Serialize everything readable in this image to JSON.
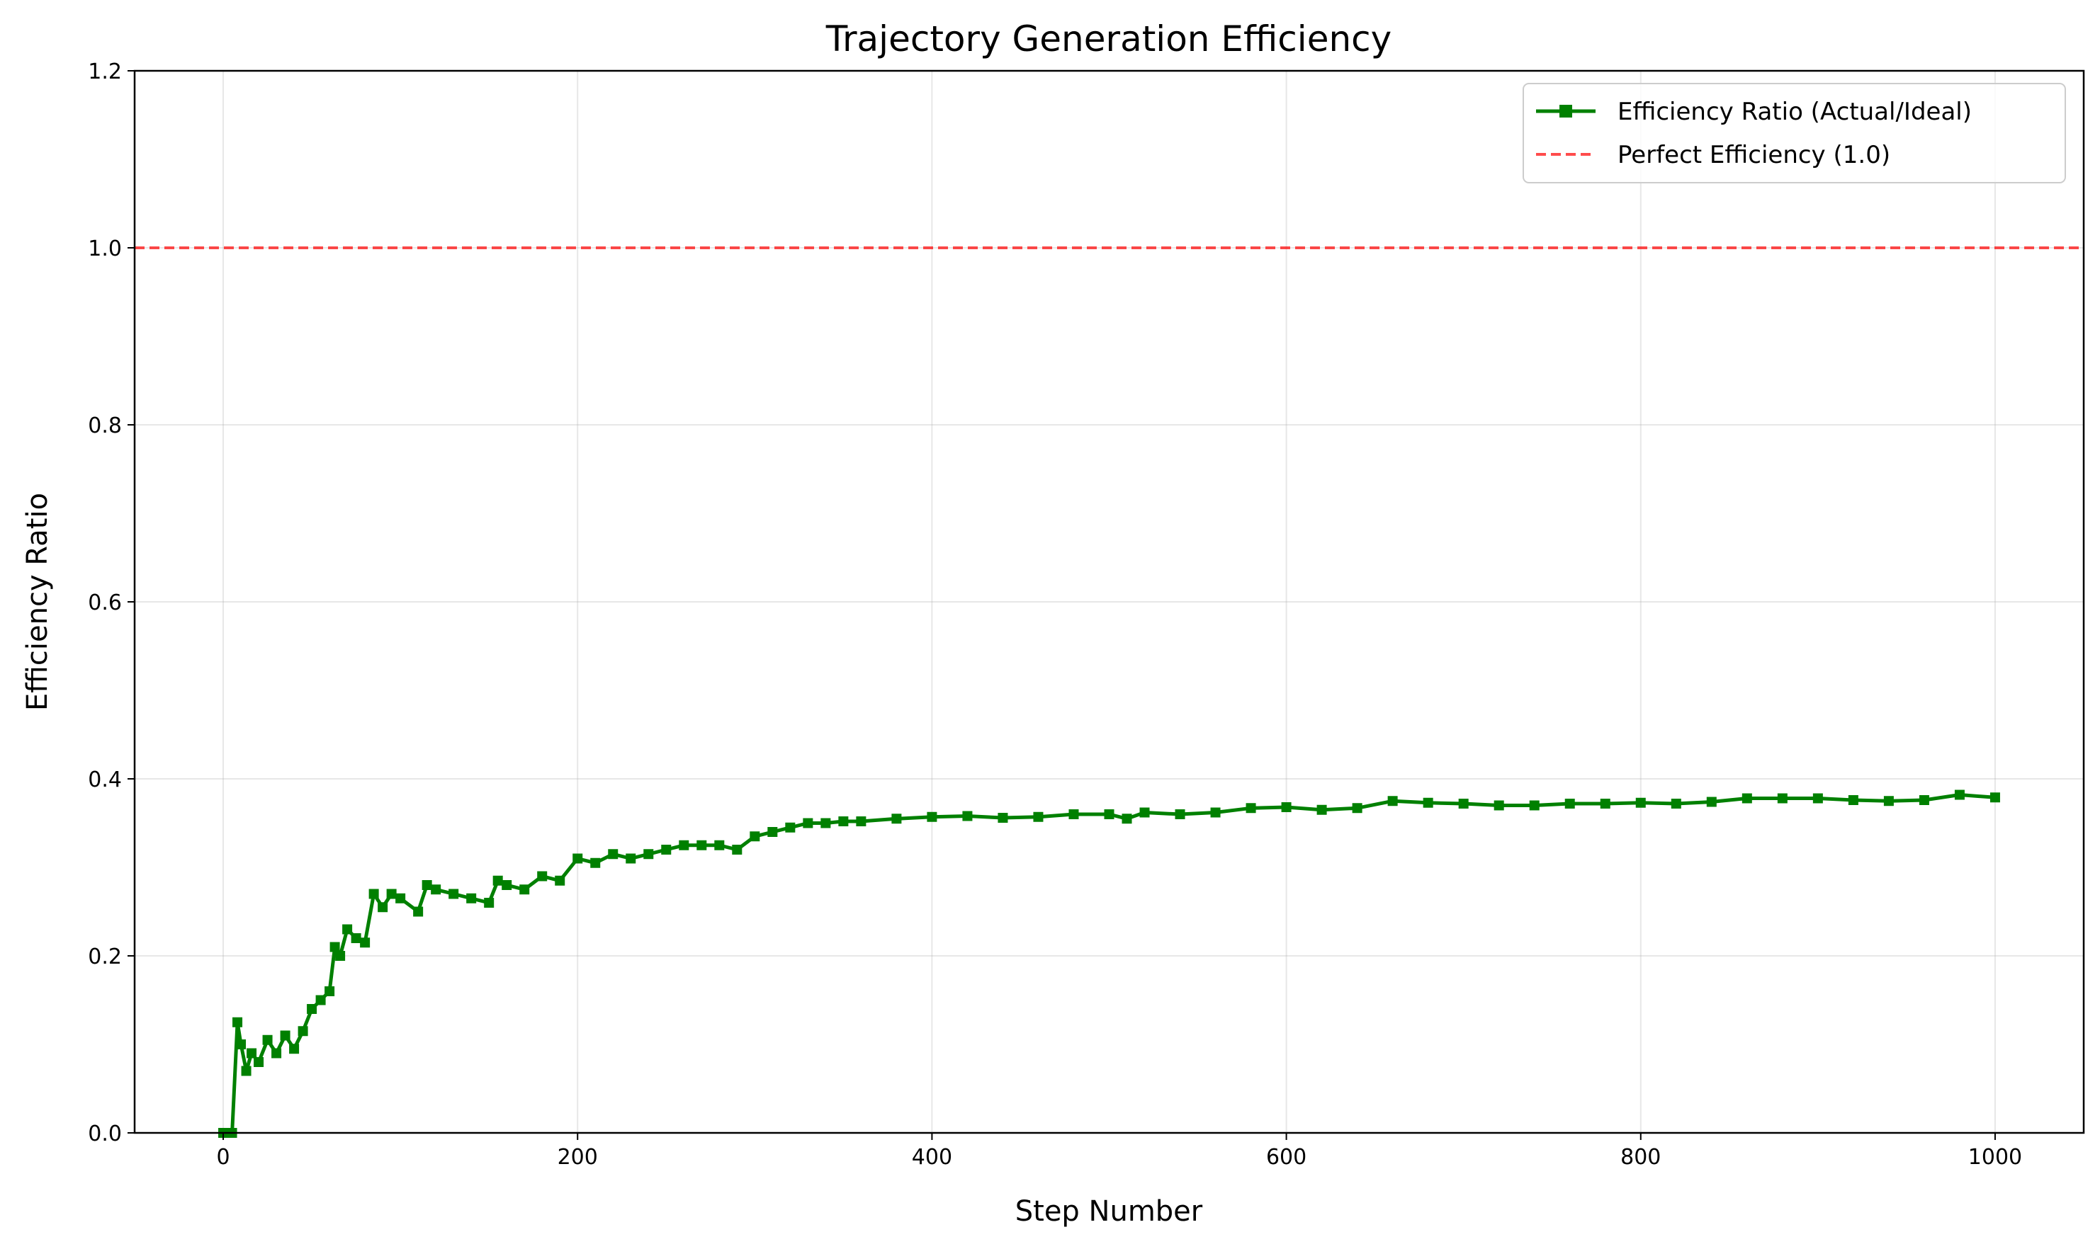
{
  "chart_data": {
    "type": "line",
    "title": "Trajectory Generation Efficiency",
    "xlabel": "Step Number",
    "ylabel": "Efficiency Ratio",
    "xlim": [
      -50,
      1050
    ],
    "ylim": [
      0,
      1.2
    ],
    "xticks": [
      "0",
      "200",
      "400",
      "600",
      "800",
      "1000"
    ],
    "yticks": [
      "0.0",
      "0.2",
      "0.4",
      "0.6",
      "0.8",
      "1.0",
      "1.2"
    ],
    "grid": true,
    "legend_position": "top-right",
    "series": [
      {
        "name": "Efficiency Ratio (Actual/Ideal)",
        "color": "#008000",
        "style": "solid",
        "marker": "square",
        "x": [
          0,
          5,
          8,
          10,
          13,
          16,
          20,
          25,
          30,
          35,
          40,
          45,
          50,
          55,
          60,
          63,
          66,
          70,
          75,
          80,
          85,
          90,
          95,
          100,
          110,
          115,
          120,
          130,
          140,
          150,
          155,
          160,
          170,
          180,
          190,
          200,
          210,
          220,
          230,
          240,
          250,
          260,
          270,
          280,
          290,
          300,
          310,
          320,
          330,
          340,
          350,
          360,
          380,
          400,
          420,
          440,
          460,
          480,
          500,
          510,
          520,
          540,
          560,
          580,
          600,
          620,
          640,
          660,
          680,
          700,
          720,
          740,
          760,
          780,
          800,
          820,
          840,
          860,
          880,
          900,
          920,
          940,
          960,
          980,
          1000
        ],
        "y": [
          0.0,
          0.0,
          0.125,
          0.1,
          0.07,
          0.09,
          0.08,
          0.105,
          0.09,
          0.11,
          0.095,
          0.115,
          0.14,
          0.15,
          0.16,
          0.21,
          0.2,
          0.23,
          0.22,
          0.215,
          0.27,
          0.255,
          0.27,
          0.265,
          0.25,
          0.28,
          0.275,
          0.27,
          0.265,
          0.26,
          0.285,
          0.28,
          0.275,
          0.29,
          0.285,
          0.31,
          0.305,
          0.315,
          0.31,
          0.315,
          0.32,
          0.325,
          0.325,
          0.325,
          0.32,
          0.335,
          0.34,
          0.345,
          0.35,
          0.35,
          0.352,
          0.352,
          0.355,
          0.357,
          0.358,
          0.356,
          0.357,
          0.36,
          0.36,
          0.355,
          0.362,
          0.36,
          0.362,
          0.367,
          0.368,
          0.365,
          0.367,
          0.375,
          0.373,
          0.372,
          0.37,
          0.37,
          0.372,
          0.372,
          0.373,
          0.372,
          0.374,
          0.378,
          0.378,
          0.378,
          0.376,
          0.375,
          0.376,
          0.382,
          0.379
        ]
      },
      {
        "name": "Perfect Efficiency (1.0)",
        "color": "#ff0000",
        "opacity": 0.7,
        "style": "dashed",
        "x": [
          -50,
          1050
        ],
        "y": [
          1.0,
          1.0
        ]
      }
    ]
  }
}
